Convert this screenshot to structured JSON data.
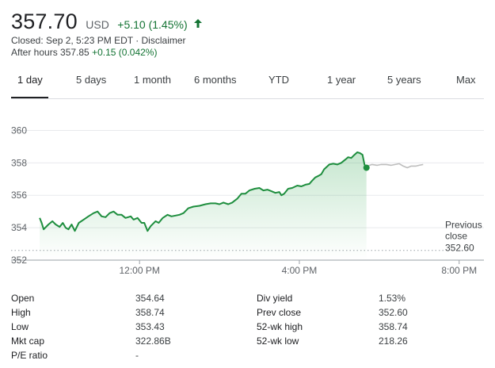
{
  "quote": {
    "price": "357.70",
    "currency": "USD",
    "change": "+5.10 (1.45%)",
    "closed_text": "Closed: Sep 2, 5:23 PM EDT · Disclaimer",
    "after_hours_label": "After hours 357.85",
    "after_hours_change": "+0.15 (0.042%)",
    "accent_color": "#137333"
  },
  "tabs": [
    {
      "label": "1 day",
      "active": true
    },
    {
      "label": "5 days"
    },
    {
      "label": "1 month"
    },
    {
      "label": "6 months"
    },
    {
      "label": "YTD"
    },
    {
      "label": "1 year"
    },
    {
      "label": "5 years"
    },
    {
      "label": "Max"
    }
  ],
  "chart_data": {
    "type": "line",
    "x_unit": "hours (Sep 2)",
    "xlim": [
      9.3,
      20.6
    ],
    "ylim": [
      352,
      361
    ],
    "y_ticks": [
      "352",
      "354",
      "356",
      "358",
      "360"
    ],
    "x_ticks": [
      {
        "label": "12:00 PM",
        "x": 12
      },
      {
        "label": "4:00 PM",
        "x": 16
      },
      {
        "label": "8:00 PM",
        "x": 20
      }
    ],
    "grid": true,
    "previous_close": {
      "label_line1": "Previous",
      "label_line2": "close",
      "value": 352.6,
      "value_text": "352.60"
    },
    "series": [
      {
        "session": "regular",
        "color": "#1e8e3e",
        "points": [
          [
            9.5,
            354.6
          ],
          [
            9.55,
            354.3
          ],
          [
            9.6,
            353.9
          ],
          [
            9.72,
            354.2
          ],
          [
            9.82,
            354.4
          ],
          [
            9.9,
            354.2
          ],
          [
            10.0,
            354.05
          ],
          [
            10.08,
            354.3
          ],
          [
            10.15,
            354.0
          ],
          [
            10.22,
            353.9
          ],
          [
            10.3,
            354.2
          ],
          [
            10.38,
            353.8
          ],
          [
            10.48,
            354.3
          ],
          [
            10.6,
            354.5
          ],
          [
            10.72,
            354.7
          ],
          [
            10.85,
            354.9
          ],
          [
            10.95,
            355.0
          ],
          [
            11.05,
            354.7
          ],
          [
            11.15,
            354.65
          ],
          [
            11.25,
            354.9
          ],
          [
            11.35,
            355.0
          ],
          [
            11.45,
            354.8
          ],
          [
            11.55,
            354.8
          ],
          [
            11.65,
            354.6
          ],
          [
            11.78,
            354.7
          ],
          [
            11.85,
            354.5
          ],
          [
            11.95,
            354.6
          ],
          [
            12.05,
            354.3
          ],
          [
            12.12,
            354.3
          ],
          [
            12.2,
            353.8
          ],
          [
            12.28,
            354.1
          ],
          [
            12.4,
            354.4
          ],
          [
            12.48,
            354.3
          ],
          [
            12.58,
            354.6
          ],
          [
            12.7,
            354.8
          ],
          [
            12.8,
            354.7
          ],
          [
            12.9,
            354.75
          ],
          [
            13.0,
            354.8
          ],
          [
            13.1,
            354.9
          ],
          [
            13.22,
            355.2
          ],
          [
            13.35,
            355.3
          ],
          [
            13.5,
            355.35
          ],
          [
            13.65,
            355.45
          ],
          [
            13.78,
            355.5
          ],
          [
            13.9,
            355.5
          ],
          [
            14.0,
            355.45
          ],
          [
            14.1,
            355.55
          ],
          [
            14.22,
            355.45
          ],
          [
            14.32,
            355.55
          ],
          [
            14.45,
            355.8
          ],
          [
            14.55,
            356.1
          ],
          [
            14.65,
            356.1
          ],
          [
            14.75,
            356.3
          ],
          [
            14.88,
            356.4
          ],
          [
            15.0,
            356.45
          ],
          [
            15.1,
            356.3
          ],
          [
            15.2,
            356.35
          ],
          [
            15.3,
            356.25
          ],
          [
            15.4,
            356.15
          ],
          [
            15.5,
            356.2
          ],
          [
            15.55,
            356.0
          ],
          [
            15.62,
            356.1
          ],
          [
            15.72,
            356.4
          ],
          [
            15.82,
            356.45
          ],
          [
            15.95,
            356.6
          ],
          [
            16.05,
            356.55
          ],
          [
            16.15,
            356.65
          ],
          [
            16.25,
            356.7
          ],
          [
            16.32,
            356.9
          ],
          [
            16.4,
            357.1
          ],
          [
            16.48,
            357.2
          ],
          [
            16.55,
            357.3
          ],
          [
            16.62,
            357.6
          ],
          [
            16.75,
            357.9
          ],
          [
            16.85,
            357.95
          ],
          [
            16.95,
            357.9
          ],
          [
            17.05,
            358.0
          ],
          [
            17.15,
            358.2
          ],
          [
            17.22,
            358.35
          ],
          [
            17.3,
            358.3
          ],
          [
            17.38,
            358.5
          ],
          [
            17.45,
            358.65
          ],
          [
            17.52,
            358.6
          ],
          [
            17.58,
            358.5
          ],
          [
            17.63,
            357.9
          ],
          [
            17.68,
            357.7
          ]
        ]
      },
      {
        "session": "after-hours",
        "color": "#bdbdbd",
        "points": [
          [
            17.7,
            357.8
          ],
          [
            17.82,
            357.9
          ],
          [
            17.95,
            357.85
          ],
          [
            18.05,
            357.9
          ],
          [
            18.18,
            357.9
          ],
          [
            18.3,
            357.85
          ],
          [
            18.4,
            357.9
          ],
          [
            18.5,
            357.95
          ],
          [
            18.6,
            357.8
          ],
          [
            18.7,
            357.7
          ],
          [
            18.8,
            357.8
          ],
          [
            18.92,
            357.8
          ],
          [
            19.0,
            357.85
          ],
          [
            19.1,
            357.9
          ]
        ]
      }
    ],
    "current_point": {
      "x": 17.68,
      "y": 357.7,
      "color": "#1e8e3e"
    }
  },
  "stats": [
    {
      "label": "Open",
      "value": "354.64"
    },
    {
      "label": "High",
      "value": "358.74"
    },
    {
      "label": "Low",
      "value": "353.43"
    },
    {
      "label": "Mkt cap",
      "value": "322.86B"
    },
    {
      "label": "P/E ratio",
      "value": "-"
    },
    {
      "label": "Div yield",
      "value": "1.53%"
    },
    {
      "label": "Prev close",
      "value": "352.60"
    },
    {
      "label": "52-wk high",
      "value": "358.74"
    },
    {
      "label": "52-wk low",
      "value": "218.26"
    }
  ]
}
